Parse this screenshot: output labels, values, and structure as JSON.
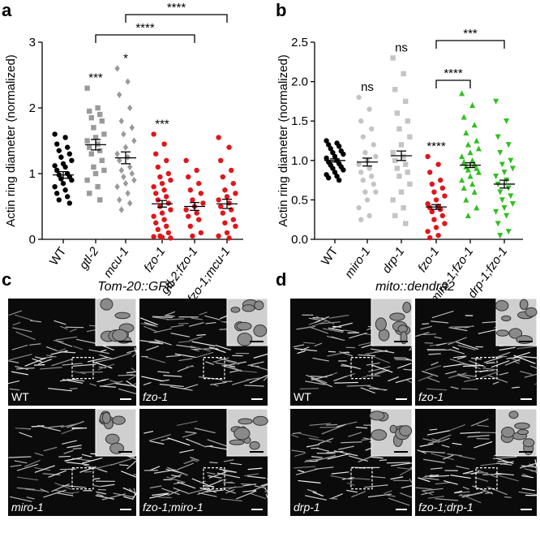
{
  "chart_data": [
    {
      "type": "dot",
      "panel": "a",
      "ylabel": "Actin ring diameter (normalized)",
      "categories": [
        "WT",
        "gtl-2",
        "mcu-1",
        "fzo-1",
        "gtl-2;fzo-1",
        "fzo-1;mcu-1"
      ],
      "colors": [
        "#000000",
        "#9a9a9a",
        "#9a9a9a",
        "#e0161b",
        "#e0161b",
        "#e0161b"
      ],
      "markers": [
        "circle",
        "square",
        "diamond",
        "circle",
        "circle",
        "circle"
      ],
      "values": [
        [
          1.6,
          1.55,
          1.45,
          1.4,
          1.35,
          1.3,
          1.25,
          1.2,
          1.15,
          1.12,
          1.1,
          1.05,
          1.0,
          0.98,
          0.95,
          0.92,
          0.9,
          0.85,
          0.8,
          0.75,
          0.7,
          0.65,
          0.6,
          0.55
        ],
        [
          2.3,
          2.0,
          1.95,
          1.9,
          1.85,
          1.8,
          1.7,
          1.6,
          1.55,
          1.5,
          1.45,
          1.4,
          1.35,
          1.3,
          1.2,
          1.1,
          1.05,
          1.0,
          0.9,
          0.8,
          0.7,
          0.6
        ],
        [
          2.6,
          2.4,
          2.2,
          2.0,
          1.8,
          1.7,
          1.6,
          1.5,
          1.4,
          1.3,
          1.25,
          1.2,
          1.1,
          1.05,
          1.0,
          0.95,
          0.9,
          0.85,
          0.8,
          0.7,
          0.6,
          0.55,
          0.45
        ],
        [
          1.6,
          1.45,
          1.3,
          1.2,
          1.1,
          1.0,
          0.95,
          0.9,
          0.85,
          0.8,
          0.75,
          0.7,
          0.65,
          0.6,
          0.55,
          0.5,
          0.45,
          0.4,
          0.35,
          0.3,
          0.25,
          0.2,
          0.15,
          0.1,
          0.05,
          0.02,
          0.03,
          0.04
        ],
        [
          1.2,
          1.05,
          0.95,
          0.85,
          0.75,
          0.7,
          0.6,
          0.55,
          0.5,
          0.45,
          0.4,
          0.35,
          0.3,
          0.2,
          0.1,
          0.05
        ],
        [
          1.55,
          1.4,
          1.2,
          1.05,
          0.95,
          0.85,
          0.75,
          0.7,
          0.65,
          0.6,
          0.55,
          0.5,
          0.45,
          0.4,
          0.3,
          0.25,
          0.2,
          0.1,
          0.05,
          0.02
        ]
      ],
      "means": [
        0.98,
        1.44,
        1.24,
        0.54,
        0.5,
        0.54
      ],
      "sems": [
        0.05,
        0.08,
        0.09,
        0.05,
        0.06,
        0.07
      ],
      "significance": [
        null,
        "***",
        "*",
        "***",
        null,
        null
      ],
      "comparisons": [
        {
          "from": "gtl-2",
          "to": "gtl-2;fzo-1",
          "label": "****"
        },
        {
          "from": "mcu-1",
          "to": "fzo-1;mcu-1",
          "label": "****"
        }
      ],
      "ylim": [
        0,
        3
      ],
      "yticks": [
        0,
        1,
        2,
        3
      ]
    },
    {
      "type": "dot",
      "panel": "b",
      "ylabel": "Actin ring diameter (normalized)",
      "categories": [
        "WT",
        "miro-1",
        "drp-1",
        "fzo-1",
        "miro-1;fzo-1",
        "drp-1;fzo-1"
      ],
      "colors": [
        "#000000",
        "#c4c4c4",
        "#c4c4c4",
        "#e0161b",
        "#2fc01f",
        "#2fc01f"
      ],
      "markers": [
        "circle",
        "circle",
        "square",
        "circle",
        "triangle",
        "triangle-down"
      ],
      "values": [
        [
          1.25,
          1.22,
          1.2,
          1.18,
          1.15,
          1.12,
          1.1,
          1.08,
          1.05,
          1.03,
          1.0,
          0.98,
          0.96,
          0.94,
          0.92,
          0.9,
          0.88,
          0.85,
          0.82,
          0.8,
          0.78,
          0.75
        ],
        [
          1.8,
          1.65,
          1.5,
          1.4,
          1.3,
          1.2,
          1.1,
          1.05,
          1.0,
          0.95,
          0.9,
          0.85,
          0.8,
          0.75,
          0.7,
          0.6,
          0.6,
          0.5,
          0.4,
          0.3,
          0.25
        ],
        [
          2.3,
          2.1,
          1.9,
          1.75,
          1.6,
          1.5,
          1.4,
          1.3,
          1.2,
          1.1,
          1.05,
          1.0,
          0.95,
          0.9,
          0.85,
          0.8,
          0.7,
          0.6,
          0.5,
          0.4,
          0.3,
          0.2
        ],
        [
          1.05,
          0.95,
          0.85,
          0.75,
          0.7,
          0.65,
          0.6,
          0.55,
          0.5,
          0.45,
          0.42,
          0.4,
          0.38,
          0.35,
          0.3,
          0.25,
          0.2,
          0.15,
          0.1,
          0.05,
          0.02
        ],
        [
          1.85,
          1.7,
          1.55,
          1.45,
          1.35,
          1.25,
          1.2,
          1.15,
          1.1,
          1.05,
          1.0,
          0.98,
          0.95,
          0.92,
          0.9,
          0.88,
          0.85,
          0.8,
          0.75,
          0.7,
          0.65,
          0.6,
          0.5,
          0.4,
          0.3
        ],
        [
          1.75,
          1.5,
          1.3,
          1.2,
          1.1,
          1.0,
          0.95,
          0.9,
          0.85,
          0.8,
          0.75,
          0.7,
          0.65,
          0.6,
          0.55,
          0.5,
          0.45,
          0.4,
          0.35,
          0.3,
          0.2,
          0.1,
          0.05
        ]
      ],
      "means": [
        1.0,
        0.98,
        1.06,
        0.41,
        0.94,
        0.7
      ],
      "sems": [
        0.02,
        0.05,
        0.06,
        0.03,
        0.03,
        0.05
      ],
      "significance": [
        null,
        "ns",
        "ns",
        "****",
        null,
        null
      ],
      "comparisons": [
        {
          "from": "fzo-1",
          "to": "miro-1;fzo-1",
          "label": "****"
        },
        {
          "from": "fzo-1",
          "to": "drp-1;fzo-1",
          "label": "***"
        }
      ],
      "ylim": [
        0,
        2.5
      ],
      "yticks": [
        {
          "value": 0,
          "label": "0.0"
        },
        0.5,
        {
          "value": 1,
          "label": "1.0"
        },
        1.5,
        {
          "value": 2,
          "label": "2.0"
        },
        2.5
      ]
    }
  ],
  "micrographs": [
    {
      "panel": "c",
      "title": "Tom-20::GFP",
      "tiles": [
        "WT",
        "fzo-1",
        "miro-1",
        "fzo-1;miro-1"
      ]
    },
    {
      "panel": "d",
      "title": "mito::dendra2",
      "tiles": [
        "WT",
        "fzo-1",
        "drp-1",
        "fzo-1;drp-1"
      ]
    }
  ]
}
